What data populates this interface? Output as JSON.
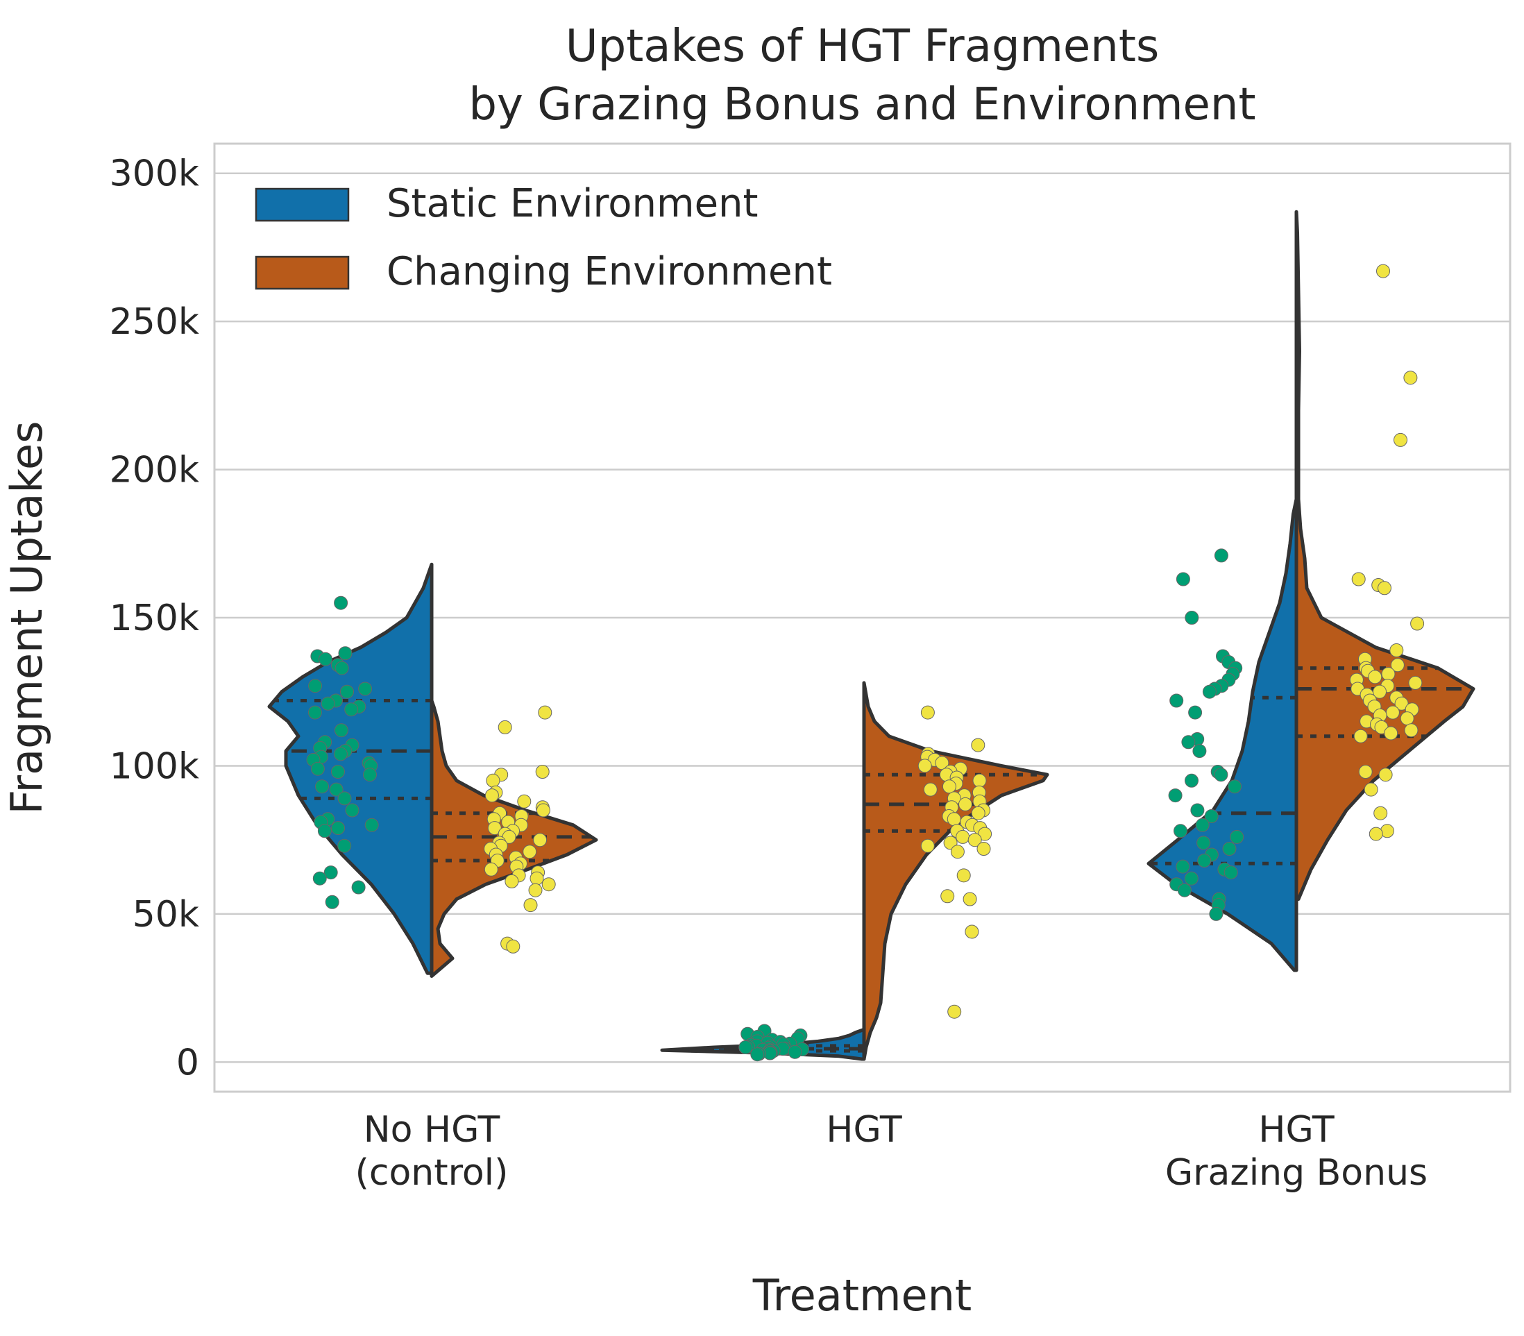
{
  "chart_data": {
    "type": "violin",
    "title": [
      "Uptakes of HGT Fragments",
      "by Grazing Bonus and Environment"
    ],
    "xlabel": "Treatment",
    "ylabel": "Fragment Uptakes",
    "ylim": [
      -10000,
      310000
    ],
    "yticks": [
      0,
      50000,
      100000,
      150000,
      200000,
      250000,
      300000
    ],
    "ytick_labels": [
      "0",
      "50k",
      "100k",
      "150k",
      "200k",
      "250k",
      "300k"
    ],
    "grid": true,
    "legend_position": "upper-left",
    "categories": [
      {
        "label": [
          "No HGT",
          "(control)"
        ]
      },
      {
        "label": [
          "HGT"
        ]
      },
      {
        "label": [
          "HGT",
          "Grazing Bonus"
        ]
      }
    ],
    "series": [
      {
        "name": "Static Environment",
        "color": "#1170aa",
        "point_color": "#009e73",
        "groups": [
          {
            "min": 30000,
            "max": 168000,
            "q1": 89000,
            "median": 105000,
            "q3": 122000,
            "density": [
              [
                30000,
                0.02
              ],
              [
                40000,
                0.09
              ],
              [
                50000,
                0.18
              ],
              [
                60000,
                0.29
              ],
              [
                70000,
                0.43
              ],
              [
                80000,
                0.55
              ],
              [
                90000,
                0.64
              ],
              [
                100000,
                0.7
              ],
              [
                105000,
                0.7
              ],
              [
                110000,
                0.64
              ],
              [
                115000,
                0.69
              ],
              [
                120000,
                0.78
              ],
              [
                125000,
                0.72
              ],
              [
                130000,
                0.62
              ],
              [
                135000,
                0.5
              ],
              [
                140000,
                0.34
              ],
              [
                145000,
                0.22
              ],
              [
                150000,
                0.12
              ],
              [
                155000,
                0.08
              ],
              [
                160000,
                0.04
              ],
              [
                168000,
                0.0
              ]
            ],
            "points": [
              155000,
              138000,
              137000,
              136000,
              134000,
              133000,
              127000,
              126000,
              125000,
              122000,
              121000,
              120000,
              119000,
              118000,
              112000,
              108000,
              107000,
              106000,
              105000,
              104000,
              103000,
              102000,
              101000,
              100000,
              99000,
              98000,
              97000,
              93000,
              92000,
              89000,
              85000,
              82000,
              81000,
              80000,
              79000,
              78000,
              73000,
              64000,
              62000,
              59000,
              54000
            ]
          },
          {
            "min": 1000,
            "max": 11000,
            "q1": 3800,
            "median": 4500,
            "q3": 5500,
            "density": [
              [
                1000,
                0.01
              ],
              [
                2000,
                0.12
              ],
              [
                3000,
                0.45
              ],
              [
                4000,
                0.97
              ],
              [
                5000,
                0.72
              ],
              [
                6000,
                0.38
              ],
              [
                7000,
                0.22
              ],
              [
                8000,
                0.12
              ],
              [
                9000,
                0.07
              ],
              [
                10000,
                0.04
              ],
              [
                11000,
                0.0
              ]
            ],
            "points": [
              10500,
              9500,
              9000,
              8500,
              8000,
              7500,
              7000,
              6800,
              6500,
              6200,
              6000,
              5800,
              5500,
              5300,
              5100,
              5000,
              4800,
              4600,
              4500,
              4300,
              4100,
              4000,
              3800,
              3600,
              3400,
              3200,
              3000,
              2800,
              2600
            ]
          },
          {
            "min": 31000,
            "max": 190000,
            "q1": 67000,
            "median": 84000,
            "q3": 123000,
            "density": [
              [
                31000,
                0.01
              ],
              [
                40000,
                0.12
              ],
              [
                50000,
                0.33
              ],
              [
                60000,
                0.58
              ],
              [
                67000,
                0.71
              ],
              [
                75000,
                0.57
              ],
              [
                85000,
                0.4
              ],
              [
                95000,
                0.31
              ],
              [
                105000,
                0.26
              ],
              [
                115000,
                0.23
              ],
              [
                125000,
                0.21
              ],
              [
                135000,
                0.18
              ],
              [
                145000,
                0.13
              ],
              [
                155000,
                0.08
              ],
              [
                165000,
                0.05
              ],
              [
                175000,
                0.03
              ],
              [
                185000,
                0.015
              ],
              [
                190000,
                0.0
              ]
            ],
            "points": [
              171000,
              163000,
              150000,
              137000,
              135000,
              133000,
              131000,
              129000,
              127000,
              126000,
              125000,
              122000,
              118000,
              109000,
              108000,
              105000,
              98000,
              97000,
              95000,
              93000,
              90000,
              85000,
              83000,
              80000,
              78000,
              76000,
              74000,
              72000,
              70000,
              68000,
              66000,
              65000,
              64000,
              62000,
              60000,
              58000,
              55000,
              53000,
              50000
            ]
          }
        ]
      },
      {
        "name": "Changing Environment",
        "color": "#b85a1a",
        "point_color": "#f0e442",
        "groups": [
          {
            "min": 29000,
            "max": 122000,
            "q1": 68000,
            "median": 76000,
            "q3": 84000,
            "density": [
              [
                29000,
                0.0
              ],
              [
                32000,
                0.05
              ],
              [
                35000,
                0.1
              ],
              [
                40000,
                0.04
              ],
              [
                45000,
                0.03
              ],
              [
                50000,
                0.06
              ],
              [
                55000,
                0.12
              ],
              [
                60000,
                0.26
              ],
              [
                65000,
                0.46
              ],
              [
                70000,
                0.65
              ],
              [
                75000,
                0.79
              ],
              [
                80000,
                0.68
              ],
              [
                85000,
                0.45
              ],
              [
                90000,
                0.25
              ],
              [
                95000,
                0.12
              ],
              [
                100000,
                0.07
              ],
              [
                105000,
                0.05
              ],
              [
                110000,
                0.04
              ],
              [
                115000,
                0.03
              ],
              [
                120000,
                0.01
              ],
              [
                122000,
                0.0
              ]
            ],
            "points": [
              118000,
              113000,
              98000,
              97000,
              95000,
              91000,
              90000,
              88000,
              86000,
              85000,
              84000,
              83000,
              82000,
              81000,
              80000,
              79000,
              78000,
              77000,
              76000,
              75000,
              74000,
              73000,
              72000,
              71000,
              70000,
              69000,
              68000,
              67000,
              66000,
              65000,
              64000,
              63000,
              62000,
              61000,
              60000,
              58000,
              53000,
              40000,
              39000
            ]
          },
          {
            "min": 1000,
            "max": 128000,
            "q1": 78000,
            "median": 87000,
            "q3": 97000,
            "density": [
              [
                1000,
                0.0
              ],
              [
                5000,
                0.01
              ],
              [
                10000,
                0.03
              ],
              [
                15000,
                0.06
              ],
              [
                20000,
                0.08
              ],
              [
                30000,
                0.09
              ],
              [
                40000,
                0.1
              ],
              [
                50000,
                0.13
              ],
              [
                60000,
                0.2
              ],
              [
                70000,
                0.3
              ],
              [
                80000,
                0.44
              ],
              [
                90000,
                0.66
              ],
              [
                95000,
                0.86
              ],
              [
                97000,
                0.88
              ],
              [
                100000,
                0.66
              ],
              [
                105000,
                0.32
              ],
              [
                110000,
                0.12
              ],
              [
                115000,
                0.05
              ],
              [
                120000,
                0.02
              ],
              [
                128000,
                0.0
              ]
            ],
            "points": [
              118000,
              107000,
              104000,
              103000,
              102000,
              101000,
              100000,
              99000,
              98000,
              97000,
              96000,
              95000,
              94000,
              93000,
              92000,
              91000,
              90000,
              89000,
              88000,
              87000,
              86000,
              85000,
              84000,
              83000,
              82000,
              81000,
              80000,
              79000,
              78000,
              77000,
              76000,
              75000,
              74000,
              73000,
              72000,
              71000,
              63000,
              56000,
              55000,
              44000,
              17000
            ]
          },
          {
            "min": 55000,
            "max": 287000,
            "q1": 110000,
            "median": 126000,
            "q3": 133000,
            "density": [
              [
                55000,
                0.01
              ],
              [
                65000,
                0.07
              ],
              [
                75000,
                0.15
              ],
              [
                85000,
                0.24
              ],
              [
                95000,
                0.37
              ],
              [
                105000,
                0.54
              ],
              [
                115000,
                0.71
              ],
              [
                120000,
                0.8
              ],
              [
                126000,
                0.85
              ],
              [
                133000,
                0.68
              ],
              [
                140000,
                0.38
              ],
              [
                150000,
                0.12
              ],
              [
                160000,
                0.05
              ],
              [
                170000,
                0.04
              ],
              [
                180000,
                0.02
              ],
              [
                190000,
                0.01
              ],
              [
                200000,
                0.01
              ],
              [
                220000,
                0.01
              ],
              [
                240000,
                0.015
              ],
              [
                260000,
                0.01
              ],
              [
                280000,
                0.005
              ],
              [
                287000,
                0.0
              ]
            ],
            "points": [
              267000,
              231000,
              210000,
              163000,
              161000,
              160000,
              148000,
              139000,
              136000,
              134000,
              133000,
              132000,
              131000,
              130000,
              129000,
              128000,
              127000,
              126000,
              125000,
              124000,
              123000,
              122000,
              121000,
              120000,
              119000,
              118000,
              117000,
              116000,
              115000,
              114000,
              113000,
              112000,
              111000,
              110000,
              98000,
              97000,
              92000,
              84000,
              78000,
              77000
            ]
          }
        ]
      }
    ]
  }
}
